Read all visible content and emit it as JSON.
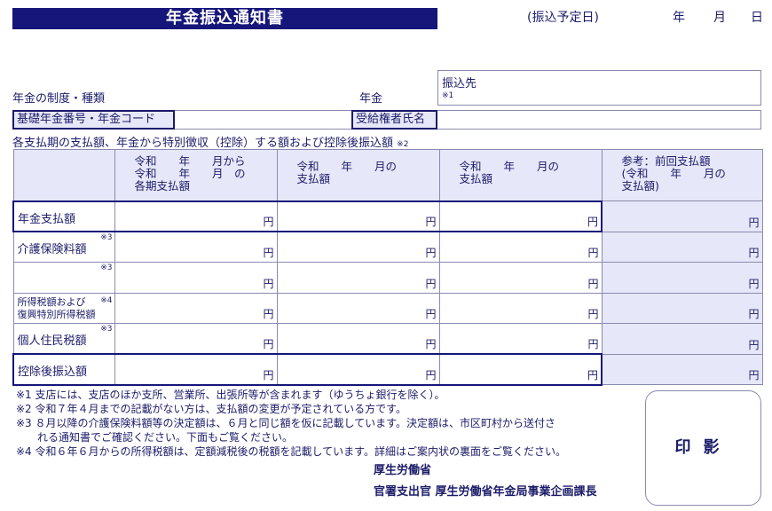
{
  "title": "年金振込通知書",
  "date": {
    "label": "(振込予定日)",
    "year": "年",
    "month": "月",
    "day": "日"
  },
  "pension_type_label": "年金の制度・種類",
  "pension_suffix": "年金",
  "bank": {
    "label": "振込先",
    "note": "※1"
  },
  "basic_number_label": "基礎年金番号・年金コード",
  "recipient_label": "受給権者氏名",
  "table_caption": "各支払期の支払額、年金から特別徴収（控除）する額および控除後振込額",
  "table_caption_note": "※2",
  "columns": [
    {
      "lines": [
        "令和　　年　　月から",
        "令和　　年　　月　の",
        "各期支払額"
      ]
    },
    {
      "lines": [
        "令和　　年　　月の",
        "支払額"
      ]
    },
    {
      "lines": [
        "令和　　年　　月の",
        "支払額"
      ]
    },
    {
      "lines": [
        "参考：前回支払額",
        "(令和　　年　　月の",
        "支払額)"
      ]
    }
  ],
  "yen": "円",
  "rows": [
    {
      "label": "年金支払額",
      "note": ""
    },
    {
      "label": "介護保険料額",
      "note": "※3"
    },
    {
      "label": "",
      "note": "※3"
    },
    {
      "label": "所得税額および\n復興特別所得税額",
      "note": "※4"
    },
    {
      "label": "個人住民税額",
      "note": "※3"
    },
    {
      "label": "控除後振込額",
      "note": ""
    }
  ],
  "notes": [
    "※1 支店には、支店のほか支所、営業所、出張所等が含まれます（ゆうちょ銀行を除く）。",
    "※2 令和７年４月までの記載がない方は、支払額の変更が予定されている方です。",
    "※3 ８月以降の介護保険料額等の決定額は、６月と同じ額を仮に記載しています。決定額は、市区町村から送付さ",
    "　　れる通知書でご確認ください。下面もご覧ください。",
    "※4 令和６年６月からの所得税額は、定額減税後の税額を記載しています。詳細はご案内状の裏面をご覧ください。"
  ],
  "issuer": {
    "ministry": "厚生労働省",
    "officer": "官署支出官 厚生労働省年金局事業企画課長"
  },
  "stamp": "印影",
  "colors": {
    "navy": "#16167a",
    "header_bg": "#e6e7f8"
  }
}
